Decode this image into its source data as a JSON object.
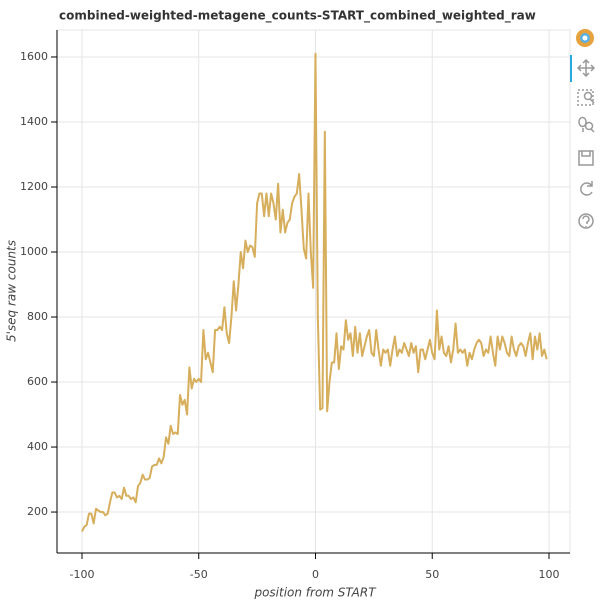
{
  "chart_data": {
    "type": "line",
    "title": "combined-weighted-metagene_counts-START_combined_weighted_raw",
    "x_label": "position from START",
    "y_label": "5'seq raw counts",
    "color": "#d6ae5c",
    "grid": true,
    "xlim": [
      -110.7,
      109
    ],
    "ylim": [
      74,
      1683
    ],
    "xticks": [
      -100,
      -50,
      0,
      50,
      100
    ],
    "yticks": [
      200,
      400,
      600,
      800,
      1000,
      1200,
      1400,
      1600
    ],
    "x": [
      -100,
      -99,
      -98,
      -97,
      -96,
      -95,
      -94,
      -93,
      -92,
      -91,
      -90,
      -89,
      -88,
      -87,
      -86,
      -85,
      -84,
      -83,
      -82,
      -81,
      -80,
      -79,
      -78,
      -77,
      -76,
      -75,
      -74,
      -73,
      -72,
      -71,
      -70,
      -69,
      -68,
      -67,
      -66,
      -65,
      -64,
      -63,
      -62,
      -61,
      -60,
      -59,
      -58,
      -57,
      -56,
      -55,
      -54,
      -53,
      -52,
      -51,
      -50,
      -49,
      -48,
      -47,
      -46,
      -45,
      -44,
      -43,
      -42,
      -41,
      -40,
      -39,
      -38,
      -37,
      -36,
      -35,
      -34,
      -33,
      -32,
      -31,
      -30,
      -29,
      -28,
      -27,
      -26,
      -25,
      -24,
      -23,
      -22,
      -21,
      -20,
      -19,
      -18,
      -17,
      -16,
      -15,
      -14,
      -13,
      -12,
      -11,
      -10,
      -9,
      -8,
      -7,
      -6,
      -5,
      -4,
      -3,
      -2,
      -1,
      0,
      1,
      2,
      3,
      4,
      5,
      6,
      7,
      8,
      9,
      10,
      11,
      12,
      13,
      14,
      15,
      16,
      17,
      18,
      19,
      20,
      21,
      22,
      23,
      24,
      25,
      26,
      27,
      28,
      29,
      30,
      31,
      32,
      33,
      34,
      35,
      36,
      37,
      38,
      39,
      40,
      41,
      42,
      43,
      44,
      45,
      46,
      47,
      48,
      49,
      50,
      51,
      52,
      53,
      54,
      55,
      56,
      57,
      58,
      59,
      60,
      61,
      62,
      63,
      64,
      65,
      66,
      67,
      68,
      69,
      70,
      71,
      72,
      73,
      74,
      75,
      76,
      77,
      78,
      79,
      80,
      81,
      82,
      83,
      84,
      85,
      86,
      87,
      88,
      89,
      90,
      91,
      92,
      93,
      94,
      95,
      96,
      97,
      98,
      99
    ],
    "values": [
      140,
      155,
      160,
      195,
      195,
      165,
      210,
      205,
      200,
      200,
      190,
      195,
      230,
      260,
      260,
      245,
      250,
      240,
      275,
      250,
      250,
      240,
      245,
      230,
      280,
      290,
      315,
      300,
      300,
      305,
      340,
      345,
      345,
      365,
      350,
      370,
      430,
      410,
      465,
      440,
      445,
      440,
      560,
      530,
      545,
      500,
      645,
      580,
      610,
      600,
      610,
      600,
      760,
      670,
      690,
      660,
      630,
      760,
      760,
      770,
      760,
      830,
      750,
      720,
      800,
      910,
      820,
      900,
      1000,
      950,
      1035,
      1000,
      1020,
      1015,
      985,
      1150,
      1180,
      1180,
      1110,
      1180,
      1110,
      1180,
      1150,
      1100,
      1210,
      1060,
      1130,
      1060,
      1090,
      1100,
      1150,
      1170,
      1180,
      1240,
      1130,
      1010,
      980,
      1180,
      1000,
      890,
      1610,
      800,
      515,
      520,
      1370,
      510,
      600,
      660,
      660,
      750,
      640,
      710,
      700,
      790,
      730,
      750,
      680,
      770,
      690,
      750,
      680,
      710,
      740,
      760,
      690,
      680,
      760,
      700,
      650,
      700,
      690,
      700,
      650,
      700,
      740,
      680,
      700,
      690,
      720,
      700,
      680,
      720,
      690,
      710,
      630,
      700,
      700,
      670,
      700,
      730,
      690,
      670,
      820,
      700,
      740,
      690,
      680,
      710,
      660,
      700,
      780,
      690,
      700,
      690,
      700,
      650,
      690,
      670,
      700,
      720,
      730,
      720,
      680,
      700,
      690,
      740,
      690,
      650,
      740,
      700,
      740,
      720,
      690,
      680,
      740,
      700,
      680,
      710,
      720,
      710,
      680,
      720,
      750,
      670,
      740,
      700,
      750,
      680,
      700,
      670
    ]
  }
}
